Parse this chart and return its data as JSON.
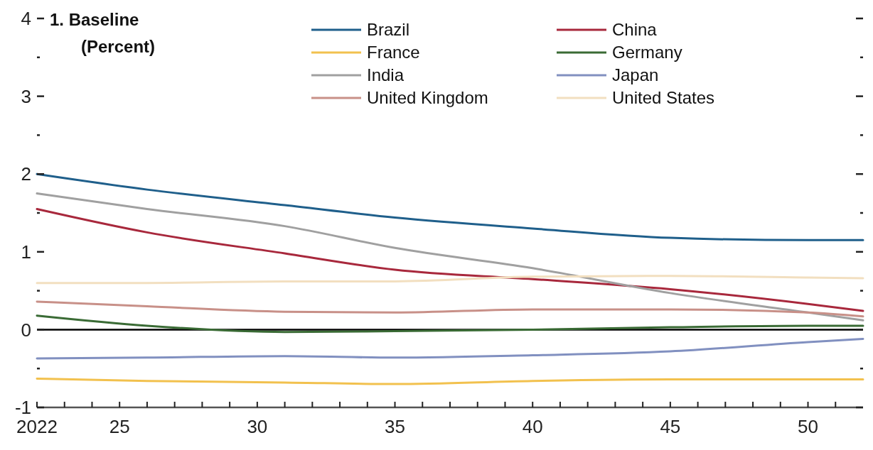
{
  "chart_data": {
    "type": "line",
    "title": "1. Baseline",
    "subtitle": "(Percent)",
    "x": [
      2022,
      2026,
      2031,
      2035,
      2040,
      2045,
      2050,
      2052
    ],
    "series": [
      {
        "name": "Brazil",
        "color": "#1f5f8b",
        "values": [
          2.0,
          1.8,
          1.6,
          1.44,
          1.3,
          1.18,
          1.15,
          1.15
        ]
      },
      {
        "name": "China",
        "color": "#a8283c",
        "values": [
          1.55,
          1.25,
          0.98,
          0.77,
          0.65,
          0.52,
          0.33,
          0.24
        ]
      },
      {
        "name": "France",
        "color": "#f2c14e",
        "values": [
          -0.63,
          -0.66,
          -0.68,
          -0.7,
          -0.66,
          -0.64,
          -0.64,
          -0.64
        ]
      },
      {
        "name": "Germany",
        "color": "#3a6b35",
        "values": [
          0.18,
          0.05,
          -0.03,
          -0.02,
          0.0,
          0.03,
          0.05,
          0.05
        ]
      },
      {
        "name": "India",
        "color": "#a0a0a0",
        "values": [
          1.75,
          1.55,
          1.33,
          1.05,
          0.79,
          0.47,
          0.22,
          0.12
        ]
      },
      {
        "name": "Japan",
        "color": "#8190c0",
        "values": [
          -0.37,
          -0.36,
          -0.34,
          -0.36,
          -0.33,
          -0.28,
          -0.16,
          -0.12
        ]
      },
      {
        "name": "United Kingdom",
        "color": "#c89088",
        "values": [
          0.36,
          0.3,
          0.23,
          0.22,
          0.26,
          0.26,
          0.22,
          0.17
        ]
      },
      {
        "name": "United States",
        "color": "#f2dfc0",
        "values": [
          0.6,
          0.6,
          0.62,
          0.62,
          0.68,
          0.69,
          0.67,
          0.66
        ]
      }
    ],
    "xlim": [
      2022,
      2052
    ],
    "xticks": [
      2022,
      {
        "value": 2023,
        "label": null
      },
      {
        "value": 2024,
        "label": null
      },
      {
        "value": 2025,
        "label": "25"
      },
      {
        "value": 2026,
        "label": null
      },
      {
        "value": 2027,
        "label": null
      },
      {
        "value": 2028,
        "label": null
      },
      {
        "value": 2029,
        "label": null
      },
      {
        "value": 2030,
        "label": "30"
      },
      {
        "value": 2031,
        "label": null
      },
      {
        "value": 2032,
        "label": null
      },
      {
        "value": 2033,
        "label": null
      },
      {
        "value": 2034,
        "label": null
      },
      {
        "value": 2035,
        "label": "35"
      },
      {
        "value": 2036,
        "label": null
      },
      {
        "value": 2037,
        "label": null
      },
      {
        "value": 2038,
        "label": null
      },
      {
        "value": 2039,
        "label": null
      },
      {
        "value": 2040,
        "label": "40"
      },
      {
        "value": 2041,
        "label": null
      },
      {
        "value": 2042,
        "label": null
      },
      {
        "value": 2043,
        "label": null
      },
      {
        "value": 2044,
        "label": null
      },
      {
        "value": 2045,
        "label": "45"
      },
      {
        "value": 2046,
        "label": null
      },
      {
        "value": 2047,
        "label": null
      },
      {
        "value": 2048,
        "label": null
      },
      {
        "value": 2049,
        "label": null
      },
      {
        "value": 2050,
        "label": "50"
      },
      {
        "value": 2051,
        "label": null
      }
    ],
    "ylim": [
      -1,
      4
    ],
    "yticks": [
      -1,
      {
        "value": -0.5,
        "label": null
      },
      0,
      {
        "value": 0.5,
        "label": null
      },
      1,
      {
        "value": 1.5,
        "label": null
      },
      2,
      {
        "value": 2.5,
        "label": null
      },
      3,
      {
        "value": 3.5,
        "label": null
      },
      4
    ],
    "ref_lines": [
      {
        "axis": "y",
        "value": 0,
        "color": "#000000"
      }
    ],
    "legend": "top",
    "grid": false,
    "marker": "none",
    "line_style": "solid"
  }
}
